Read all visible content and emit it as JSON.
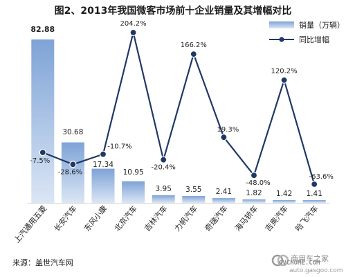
{
  "source_text": "来源：盖世汽车网",
  "watermark": {
    "line1": "商用车之家",
    "line2": "CVCHOME.COM",
    "line3": "auto.gasgoo.com"
  },
  "colors": {
    "bar_top": "#7ea3d6",
    "bar_bottom": "#dbe6f5",
    "line": "#1f3864",
    "grid": "#d9d9d9"
  },
  "chart_data": {
    "type": "bar",
    "title": "图2、2013年我国微客市场前十企业销量及其增幅对比",
    "categories": [
      "上汽通用五菱",
      "长安汽车",
      "东风小康",
      "北京汽车",
      "吉林汽车",
      "力帆汽车",
      "奇瑞汽车",
      "海马轿车",
      "吉奥汽车",
      "哈飞汽车"
    ],
    "series": [
      {
        "name": "销量（万辆）",
        "type": "bar",
        "values": [
          82.88,
          30.68,
          17.34,
          10.95,
          3.95,
          3.55,
          2.41,
          1.82,
          1.42,
          1.41
        ],
        "labels": [
          "82.88",
          "30.68",
          "17.34",
          "10.95",
          "3.95",
          "3.55",
          "2.41",
          "1.82",
          "1.42",
          "1.41"
        ]
      },
      {
        "name": "同比增幅",
        "type": "line",
        "values": [
          -7.5,
          -28.6,
          -10.7,
          204.2,
          -20.4,
          166.2,
          19.3,
          -48.0,
          120.2,
          -63.6
        ],
        "labels": [
          "-7.5%",
          "-28.6%",
          "-10.7%",
          "204.2%",
          "-20.4%",
          "166.2%",
          "19.3%",
          "-48.0%",
          "120.2%",
          "-63.6%"
        ]
      }
    ],
    "legend_position": "top-right",
    "grid": false
  }
}
